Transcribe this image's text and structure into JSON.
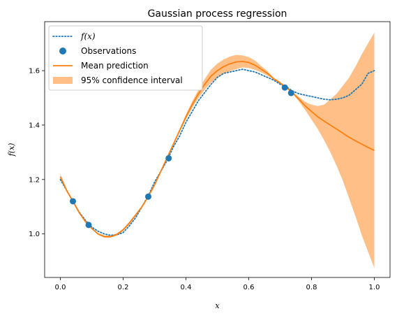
{
  "chart_data": {
    "type": "line",
    "title": "Gaussian process regression",
    "xlabel": "x",
    "ylabel": "f(x)",
    "xlim": [
      -0.05,
      1.05
    ],
    "ylim": [
      0.84,
      1.78
    ],
    "xticks": [
      "0.0",
      "0.2",
      "0.4",
      "0.6",
      "0.8",
      "1.0"
    ],
    "xtick_values": [
      0.0,
      0.2,
      0.4,
      0.6,
      0.8,
      1.0
    ],
    "yticks": [
      "1.0",
      "1.2",
      "1.4",
      "1.6"
    ],
    "ytick_values": [
      1.0,
      1.2,
      1.4,
      1.6
    ],
    "grid": false,
    "legend_position": "top-left",
    "colors": {
      "true_function": "#1f77b4",
      "observations": "#1f77b4",
      "mean": "#ff7f0e",
      "confidence": "#ffbf86"
    },
    "series": [
      {
        "name": "f(x)",
        "style": "dotted",
        "x": [
          0.0,
          0.02,
          0.04,
          0.06,
          0.08,
          0.1,
          0.12,
          0.14,
          0.16,
          0.18,
          0.2,
          0.22,
          0.24,
          0.26,
          0.28,
          0.3,
          0.32,
          0.34,
          0.36,
          0.38,
          0.4,
          0.42,
          0.44,
          0.46,
          0.48,
          0.5,
          0.52,
          0.54,
          0.56,
          0.58,
          0.6,
          0.62,
          0.64,
          0.66,
          0.68,
          0.7,
          0.72,
          0.74,
          0.76,
          0.78,
          0.8,
          0.82,
          0.84,
          0.86,
          0.88,
          0.9,
          0.92,
          0.94,
          0.96,
          0.98,
          1.0
        ],
        "values": [
          1.2,
          1.16,
          1.12,
          1.08,
          1.05,
          1.025,
          1.01,
          1.0,
          0.995,
          0.997,
          1.005,
          1.03,
          1.06,
          1.1,
          1.14,
          1.19,
          1.23,
          1.27,
          1.32,
          1.36,
          1.41,
          1.45,
          1.49,
          1.52,
          1.55,
          1.575,
          1.59,
          1.595,
          1.6,
          1.605,
          1.6,
          1.595,
          1.585,
          1.575,
          1.565,
          1.55,
          1.54,
          1.525,
          1.515,
          1.51,
          1.505,
          1.5,
          1.495,
          1.493,
          1.495,
          1.5,
          1.51,
          1.53,
          1.55,
          1.59,
          1.6
        ]
      },
      {
        "name": "Observations",
        "style": "scatter",
        "x": [
          0.04,
          0.09,
          0.28,
          0.345,
          0.715,
          0.735
        ],
        "values": [
          1.12,
          1.033,
          1.137,
          1.278,
          1.538,
          1.518
        ]
      },
      {
        "name": "Mean prediction",
        "style": "solid",
        "x": [
          0.0,
          0.02,
          0.04,
          0.06,
          0.08,
          0.1,
          0.12,
          0.14,
          0.16,
          0.18,
          0.2,
          0.22,
          0.24,
          0.26,
          0.28,
          0.3,
          0.32,
          0.34,
          0.36,
          0.38,
          0.4,
          0.42,
          0.44,
          0.46,
          0.48,
          0.5,
          0.52,
          0.54,
          0.56,
          0.58,
          0.6,
          0.62,
          0.64,
          0.66,
          0.68,
          0.7,
          0.72,
          0.74,
          0.76,
          0.78,
          0.8,
          0.82,
          0.84,
          0.86,
          0.88,
          0.9,
          0.92,
          0.94,
          0.96,
          0.98,
          1.0
        ],
        "values": [
          1.21,
          1.16,
          1.12,
          1.078,
          1.045,
          1.02,
          1.0,
          0.99,
          0.99,
          0.998,
          1.015,
          1.04,
          1.07,
          1.1,
          1.137,
          1.18,
          1.23,
          1.28,
          1.33,
          1.38,
          1.43,
          1.475,
          1.515,
          1.55,
          1.58,
          1.6,
          1.615,
          1.625,
          1.632,
          1.634,
          1.63,
          1.62,
          1.605,
          1.59,
          1.57,
          1.555,
          1.538,
          1.518,
          1.495,
          1.47,
          1.45,
          1.43,
          1.415,
          1.4,
          1.385,
          1.37,
          1.355,
          1.342,
          1.33,
          1.318,
          1.307
        ]
      },
      {
        "name": "95% confidence interval",
        "style": "band",
        "x": [
          0.0,
          0.02,
          0.04,
          0.06,
          0.08,
          0.1,
          0.12,
          0.14,
          0.16,
          0.18,
          0.2,
          0.22,
          0.24,
          0.26,
          0.28,
          0.3,
          0.32,
          0.34,
          0.36,
          0.38,
          0.4,
          0.42,
          0.44,
          0.46,
          0.48,
          0.5,
          0.52,
          0.54,
          0.56,
          0.58,
          0.6,
          0.62,
          0.64,
          0.66,
          0.68,
          0.7,
          0.72,
          0.74,
          0.76,
          0.78,
          0.8,
          0.82,
          0.84,
          0.86,
          0.88,
          0.9,
          0.92,
          0.94,
          0.96,
          0.98,
          1.0
        ],
        "lower": [
          1.2,
          1.155,
          1.12,
          1.076,
          1.044,
          1.02,
          0.997,
          0.986,
          0.986,
          0.994,
          1.011,
          1.035,
          1.066,
          1.097,
          1.137,
          1.178,
          1.227,
          1.278,
          1.326,
          1.374,
          1.421,
          1.463,
          1.5,
          1.53,
          1.556,
          1.574,
          1.589,
          1.598,
          1.606,
          1.612,
          1.61,
          1.603,
          1.593,
          1.582,
          1.567,
          1.551,
          1.538,
          1.515,
          1.487,
          1.455,
          1.42,
          1.385,
          1.345,
          1.3,
          1.25,
          1.195,
          1.13,
          1.065,
          0.995,
          0.935,
          0.875
        ],
        "upper": [
          1.22,
          1.165,
          1.12,
          1.08,
          1.046,
          1.02,
          1.003,
          0.994,
          0.994,
          1.002,
          1.019,
          1.045,
          1.074,
          1.103,
          1.137,
          1.182,
          1.233,
          1.282,
          1.334,
          1.386,
          1.439,
          1.487,
          1.53,
          1.57,
          1.604,
          1.626,
          1.641,
          1.652,
          1.658,
          1.656,
          1.65,
          1.637,
          1.617,
          1.598,
          1.573,
          1.559,
          1.538,
          1.521,
          1.503,
          1.485,
          1.475,
          1.47,
          1.475,
          1.495,
          1.515,
          1.545,
          1.575,
          1.615,
          1.66,
          1.7,
          1.74
        ]
      }
    ],
    "legend": [
      {
        "label": "f(x)",
        "kind": "dotted-line"
      },
      {
        "label": "Observations",
        "kind": "marker"
      },
      {
        "label": "Mean prediction",
        "kind": "solid-line"
      },
      {
        "label": "95% confidence interval",
        "kind": "patch"
      }
    ]
  }
}
